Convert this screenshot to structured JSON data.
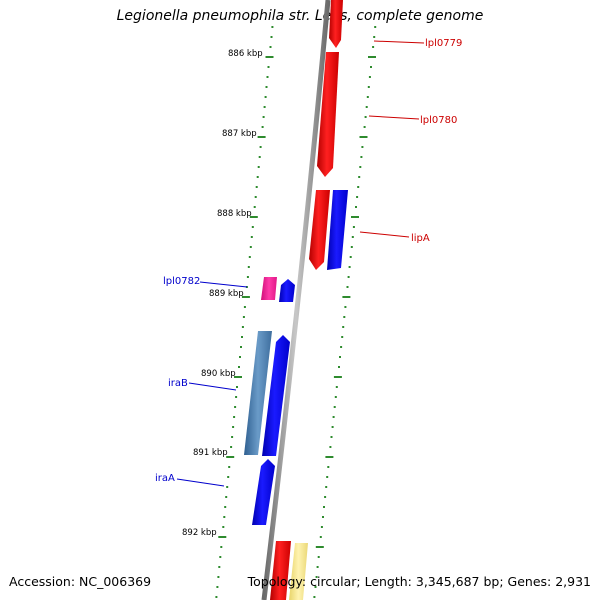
{
  "title": "Legionella pneumophila str. Lens, complete genome",
  "accession": "Accession: NC_006369",
  "topology": "Topology: circular; Length: 3,345,687 bp; Genes: 2,931",
  "scale_labels": [
    "886 kbp",
    "887 kbp",
    "888 kbp",
    "889 kbp",
    "890 kbp",
    "891 kbp",
    "892 kbp"
  ],
  "gene_labels": [
    {
      "name": "lpl0779",
      "color": "#cc0000"
    },
    {
      "name": "lpl0780",
      "color": "#cc0000"
    },
    {
      "name": "lipA",
      "color": "#cc0000"
    },
    {
      "name": "lpl0782",
      "color": "#0000cc"
    },
    {
      "name": "iraB",
      "color": "#0000cc"
    },
    {
      "name": "iraA",
      "color": "#0000cc"
    }
  ],
  "colors": {
    "forward_gene": "#ff0000",
    "reverse_gene": "#0000ff",
    "steelblue_gene": "#4a7fb0",
    "magenta_gene": "#ff1493",
    "yellow_gene": "#f0e08a",
    "backbone": "#808080",
    "ticks": "#2e8b2e"
  }
}
